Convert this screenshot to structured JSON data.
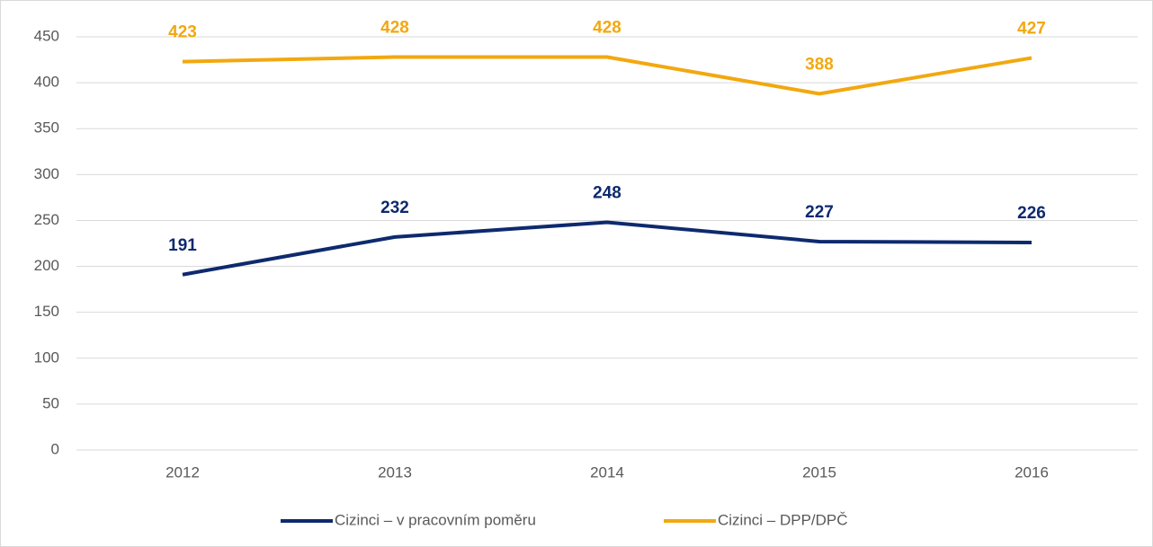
{
  "chart_data": {
    "type": "line",
    "categories": [
      "2012",
      "2013",
      "2014",
      "2015",
      "2016"
    ],
    "series": [
      {
        "name": "Cizinci – v pracovním poměru",
        "color": "#0e2a6e",
        "values": [
          191,
          232,
          248,
          227,
          226
        ]
      },
      {
        "name": "Cizinci – DPP/DPČ",
        "color": "#f2a80f",
        "values": [
          423,
          428,
          428,
          388,
          427
        ]
      }
    ],
    "ylim": [
      0,
      450
    ],
    "yticks": [
      0,
      50,
      100,
      150,
      200,
      250,
      300,
      350,
      400,
      450
    ],
    "grid": true,
    "legend": "bottom"
  }
}
